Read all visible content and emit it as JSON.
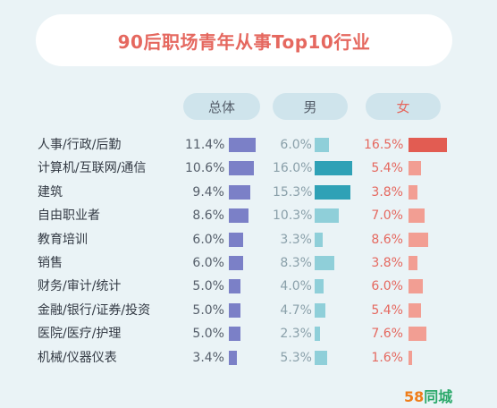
{
  "title": "90后职场青年从事Top10行业",
  "headers": {
    "total": "总体",
    "male": "男",
    "female": "女"
  },
  "logo": {
    "number": "58",
    "text": "同城"
  },
  "colors": {
    "title": "#e5685f",
    "total_bar": "#7b80c7",
    "male_bar": "#8fcfd9",
    "male_bar_top": "#2fa1b6",
    "female_bar": "#f29e93",
    "female_bar_top": "#e25c52"
  },
  "chart_data": {
    "type": "bar",
    "title": "90后职场青年从事Top10行业",
    "categories": [
      "人事/行政/后勤",
      "计算机/互联网/通信",
      "建筑",
      "自由职业者",
      "教育培训",
      "销售",
      "财务/审计/统计",
      "金融/银行/证券/投资",
      "医院/医疗/护理",
      "机械/仪器仪表"
    ],
    "series": [
      {
        "name": "总体",
        "values": [
          11.4,
          10.6,
          9.4,
          8.6,
          6.0,
          6.0,
          5.0,
          5.0,
          5.0,
          3.4
        ],
        "labels": [
          "11.4%",
          "10.6%",
          "9.4%",
          "8.6%",
          "6.0%",
          "6.0%",
          "5.0%",
          "5.0%",
          "5.0%",
          "3.4%"
        ]
      },
      {
        "name": "男",
        "values": [
          6.0,
          16.0,
          15.3,
          10.3,
          3.3,
          8.3,
          4.0,
          4.7,
          2.3,
          5.3
        ],
        "labels": [
          "6.0%",
          "16.0%",
          "15.3%",
          "10.3%",
          "3.3%",
          "8.3%",
          "4.0%",
          "4.7%",
          "2.3%",
          "5.3%"
        ]
      },
      {
        "name": "女",
        "values": [
          16.5,
          5.4,
          3.8,
          7.0,
          8.6,
          3.8,
          6.0,
          5.4,
          7.6,
          1.6
        ],
        "labels": [
          "16.5%",
          "5.4%",
          "3.8%",
          "7.0%",
          "8.6%",
          "3.8%",
          "6.0%",
          "5.4%",
          "7.6%",
          "1.6%"
        ]
      }
    ],
    "unit": "%"
  }
}
